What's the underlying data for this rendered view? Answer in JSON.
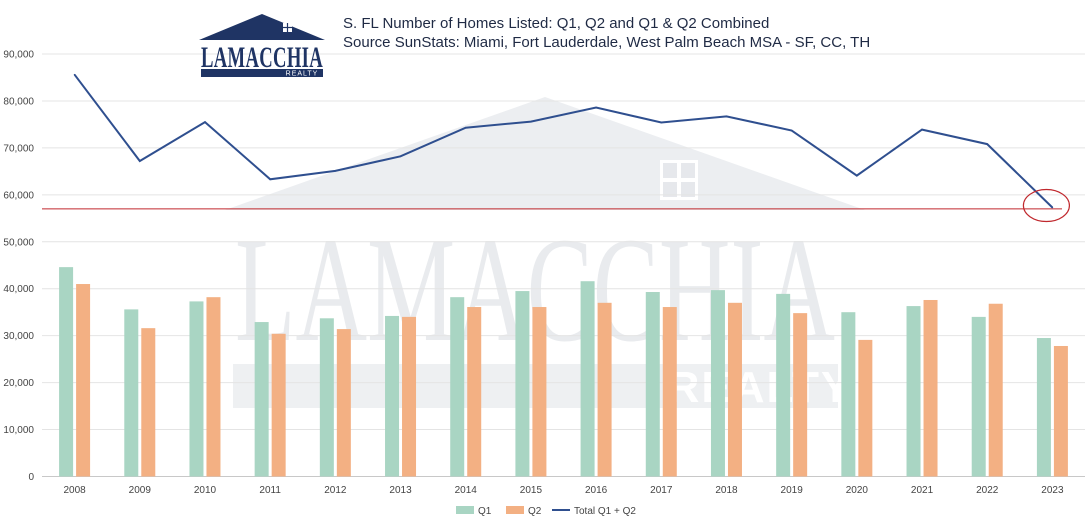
{
  "logo": {
    "wordmark": "LAMACCHIA",
    "sub": "REALTY"
  },
  "title_lines": [
    "S. FL Number of Homes Listed: Q1, Q2 and Q1 & Q2 Combined",
    "Source SunStats: Miami, Fort Lauderdale, West Palm Beach MSA - SF, CC, TH"
  ],
  "colors": {
    "q1": "#a9d5c3",
    "q2": "#f3b083",
    "total": "#2f4f8f",
    "reference_line": "#c0282d",
    "circle": "#c0282d",
    "logo_navy": "#1f3464"
  },
  "chart_data": {
    "type": "bar",
    "categories": [
      "2008",
      "2009",
      "2010",
      "2011",
      "2012",
      "2013",
      "2014",
      "2015",
      "2016",
      "2017",
      "2018",
      "2019",
      "2020",
      "2021",
      "2022",
      "2023"
    ],
    "series": [
      {
        "name": "Q1",
        "type": "bar",
        "values": [
          44600,
          35600,
          37300,
          32900,
          33700,
          34200,
          38200,
          39500,
          41600,
          39300,
          39700,
          38900,
          35000,
          36300,
          34000,
          29500
        ]
      },
      {
        "name": "Q2",
        "type": "bar",
        "values": [
          41000,
          31600,
          38200,
          30400,
          31400,
          34000,
          36100,
          36100,
          37000,
          36100,
          37000,
          34800,
          29100,
          37600,
          36800,
          27800
        ]
      },
      {
        "name": "Total Q1 + Q2",
        "type": "line",
        "values": [
          85600,
          67200,
          75500,
          63300,
          65100,
          68200,
          74300,
          75600,
          78600,
          75400,
          76700,
          73700,
          64100,
          73900,
          70800,
          57300
        ]
      }
    ],
    "yticks": [
      "0",
      "10,000",
      "20,000",
      "30,000",
      "40,000",
      "50,000",
      "60,000",
      "70,000",
      "80,000",
      "90,000"
    ],
    "ylim": [
      0,
      90000
    ],
    "reference_line_value": 57000,
    "highlight": "circle around 2023 total",
    "grid": true,
    "legend_position": "bottom",
    "watermark": {
      "word": "LAMACCHIA",
      "sub": "REALTY"
    }
  }
}
